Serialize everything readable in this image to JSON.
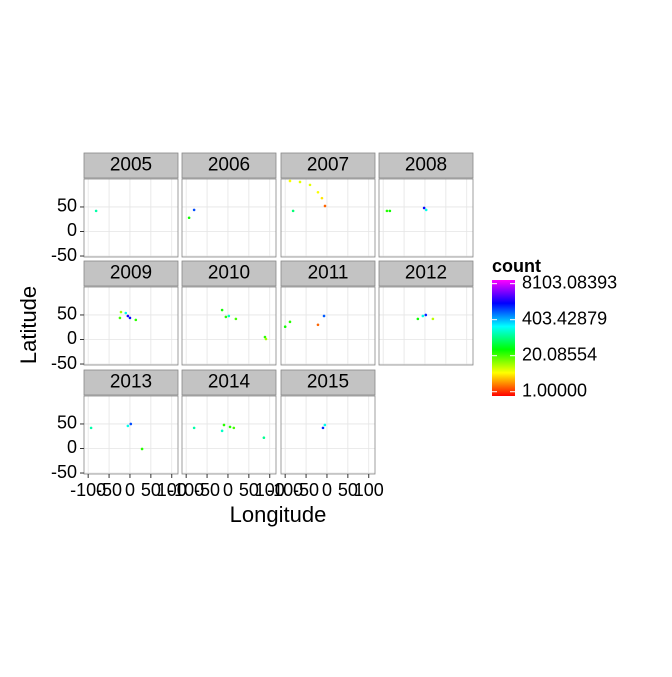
{
  "chart_data": {
    "type": "scatter",
    "x_label": "Longitude",
    "y_label": "Latitude",
    "xlim": [
      -110,
      115
    ],
    "xticks": [
      -100,
      -50,
      0,
      50,
      100
    ],
    "ylim": [
      -52,
      107
    ],
    "yticks": [
      -50,
      0,
      50
    ],
    "grid": true,
    "strip_color": "#c3c3c3",
    "panels": [
      {
        "name": "2005",
        "x": [
          -81
        ],
        "y": [
          42
        ],
        "count": [
          120
        ]
      },
      {
        "name": "2006",
        "x": [
          -81,
          -93
        ],
        "y": [
          44,
          28
        ],
        "count": [
          900,
          30
        ]
      },
      {
        "name": "2007",
        "x": [
          -88.5,
          -64.5,
          -40.6,
          -21.5,
          -12,
          -4.7,
          -81
        ],
        "y": [
          103,
          101,
          95,
          80,
          68,
          52,
          42
        ],
        "count": [
          5,
          6,
          6,
          5,
          4,
          1.5,
          80
        ]
      },
      {
        "name": "2008",
        "x": [
          -91,
          -84,
          -2,
          3
        ],
        "y": [
          42,
          42,
          48,
          44
        ],
        "count": [
          25,
          30,
          1500,
          200
        ]
      },
      {
        "name": "2009",
        "x": [
          -21.5,
          -5,
          0,
          -10,
          14,
          -24
        ],
        "y": [
          56,
          48,
          44,
          54,
          40,
          44
        ],
        "count": [
          10,
          2000,
          1500,
          200,
          25,
          20
        ]
      },
      {
        "name": "2010",
        "x": [
          -14,
          -5,
          2,
          19,
          88.6,
          91
        ],
        "y": [
          60,
          46,
          48,
          42,
          5,
          1
        ],
        "count": [
          30,
          25,
          150,
          20,
          25,
          10
        ]
      },
      {
        "name": "2011",
        "x": [
          -7,
          -21.5,
          -88.5,
          -100
        ],
        "y": [
          48,
          30,
          36,
          26
        ],
        "count": [
          800,
          1.5,
          25,
          30
        ]
      },
      {
        "name": "2012",
        "x": [
          -5,
          2,
          19,
          -17
        ],
        "y": [
          48,
          50,
          42,
          42
        ],
        "count": [
          200,
          1200,
          8,
          30
        ]
      },
      {
        "name": "2013",
        "x": [
          -93,
          -5,
          2,
          29
        ],
        "y": [
          42,
          46,
          50,
          -1
        ],
        "count": [
          120,
          200,
          900,
          25
        ]
      },
      {
        "name": "2014",
        "x": [
          -81,
          -9.5,
          5,
          14,
          86,
          -14
        ],
        "y": [
          42,
          48,
          44,
          42,
          22,
          36
        ],
        "count": [
          120,
          25,
          25,
          20,
          100,
          150
        ]
      },
      {
        "name": "2015",
        "x": [
          -9.5,
          -5
        ],
        "y": [
          42,
          48
        ],
        "count": [
          1200,
          200
        ]
      }
    ],
    "colorbar": {
      "title": "count",
      "log": true,
      "lim": [
        0.7,
        11000
      ],
      "colors": [
        "#ff0000",
        "#ffff00",
        "#00ff00",
        "#00ffff",
        "#0000ff",
        "#ff00ff"
      ],
      "ticks": [
        {
          "value": 8103.08393,
          "label": "8103.08393"
        },
        {
          "value": 403.42879,
          "label": "403.42879"
        },
        {
          "value": 20.08554,
          "label": "20.08554"
        },
        {
          "value": 1,
          "label": "1.00000"
        }
      ]
    }
  }
}
